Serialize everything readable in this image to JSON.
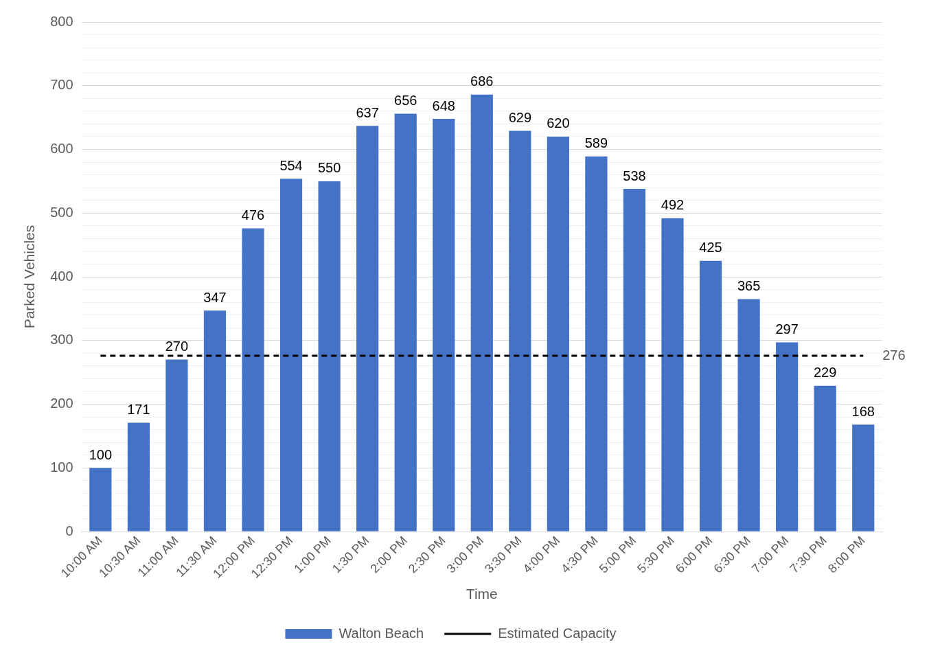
{
  "chart_data": {
    "type": "bar",
    "xlabel": "Time",
    "ylabel": "Parked Vehicles",
    "categories": [
      "10:00 AM",
      "10:30 AM",
      "11:00 AM",
      "11:30 AM",
      "12:00 PM",
      "12:30 PM",
      "1:00 PM",
      "1:30 PM",
      "2:00 PM",
      "2:30 PM",
      "3:00 PM",
      "3:30 PM",
      "4:00 PM",
      "4:30 PM",
      "5:00 PM",
      "5:30 PM",
      "6:00 PM",
      "6:30 PM",
      "7:00 PM",
      "7:30 PM",
      "8:00 PM"
    ],
    "series": [
      {
        "name": "Walton Beach",
        "color": "#4472c4",
        "values": [
          100,
          171,
          270,
          347,
          476,
          554,
          550,
          637,
          656,
          648,
          686,
          629,
          620,
          589,
          538,
          492,
          425,
          365,
          297,
          229,
          168
        ]
      },
      {
        "name": "Estimated Capacity",
        "type": "line",
        "color": "#000000",
        "line_style": "dashed",
        "marker": "none",
        "values": [
          276,
          276,
          276,
          276,
          276,
          276,
          276,
          276,
          276,
          276,
          276,
          276,
          276,
          276,
          276,
          276,
          276,
          276,
          276,
          276,
          276
        ],
        "value_labels": [
          null,
          null,
          null,
          null,
          null,
          null,
          null,
          null,
          null,
          null,
          null,
          null,
          null,
          null,
          null,
          null,
          null,
          null,
          null,
          null,
          "276"
        ]
      }
    ],
    "data_labels": true,
    "ylim": [
      0,
      800
    ],
    "yticks": [
      0,
      {
        "value": 20,
        "label": null
      },
      {
        "value": 40,
        "label": null
      },
      {
        "value": 60,
        "label": null
      },
      {
        "value": 80,
        "label": null
      },
      100,
      {
        "value": 120,
        "label": null
      },
      {
        "value": 140,
        "label": null
      },
      {
        "value": 160,
        "label": null
      },
      {
        "value": 180,
        "label": null
      },
      200,
      {
        "value": 220,
        "label": null
      },
      {
        "value": 240,
        "label": null
      },
      {
        "value": 260,
        "label": null
      },
      {
        "value": 280,
        "label": null
      },
      300,
      {
        "value": 320,
        "label": null
      },
      {
        "value": 340,
        "label": null
      },
      {
        "value": 360,
        "label": null
      },
      {
        "value": 380,
        "label": null
      },
      400,
      {
        "value": 420,
        "label": null
      },
      {
        "value": 440,
        "label": null
      },
      {
        "value": 460,
        "label": null
      },
      {
        "value": 480,
        "label": null
      },
      500,
      {
        "value": 520,
        "label": null
      },
      {
        "value": 540,
        "label": null
      },
      {
        "value": 560,
        "label": null
      },
      {
        "value": 580,
        "label": null
      },
      600,
      {
        "value": 620,
        "label": null
      },
      {
        "value": 640,
        "label": null
      },
      {
        "value": 660,
        "label": null
      },
      {
        "value": 680,
        "label": null
      },
      700,
      {
        "value": 720,
        "label": null
      },
      {
        "value": 740,
        "label": null
      },
      {
        "value": 760,
        "label": null
      },
      {
        "value": 780,
        "label": null
      },
      800
    ],
    "grid": "y",
    "legend": "bottom"
  }
}
